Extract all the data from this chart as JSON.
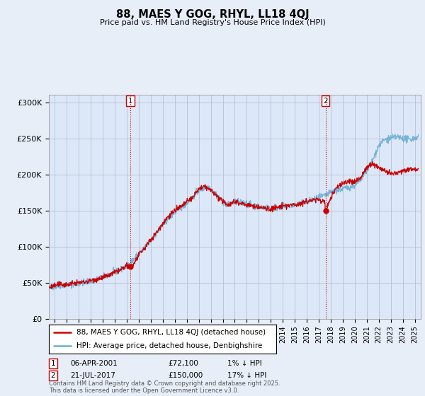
{
  "title": "88, MAES Y GOG, RHYL, LL18 4QJ",
  "subtitle": "Price paid vs. HM Land Registry's House Price Index (HPI)",
  "ylabel_ticks": [
    "£0",
    "£50K",
    "£100K",
    "£150K",
    "£200K",
    "£250K",
    "£300K"
  ],
  "ytick_values": [
    0,
    50000,
    100000,
    150000,
    200000,
    250000,
    300000
  ],
  "ylim": [
    0,
    310000
  ],
  "xlim_start": 1994.5,
  "xlim_end": 2025.5,
  "legend_line1": "88, MAES Y GOG, RHYL, LL18 4QJ (detached house)",
  "legend_line2": "HPI: Average price, detached house, Denbighshire",
  "line1_color": "#cc0000",
  "line2_color": "#6baed6",
  "annotation1_label": "1",
  "annotation1_date": "06-APR-2001",
  "annotation1_price": "£72,100",
  "annotation1_hpi": "1% ↓ HPI",
  "annotation2_label": "2",
  "annotation2_date": "21-JUL-2017",
  "annotation2_price": "£150,000",
  "annotation2_hpi": "17% ↓ HPI",
  "footer": "Contains HM Land Registry data © Crown copyright and database right 2025.\nThis data is licensed under the Open Government Licence v3.0.",
  "bg_color": "#e8eef8",
  "plot_bg_color": "#dce8f8",
  "gridcolor": "#b0b8cc",
  "vline1_x": 2001.27,
  "vline2_x": 2017.56,
  "marker1_y": 72100,
  "marker2_y": 150000
}
